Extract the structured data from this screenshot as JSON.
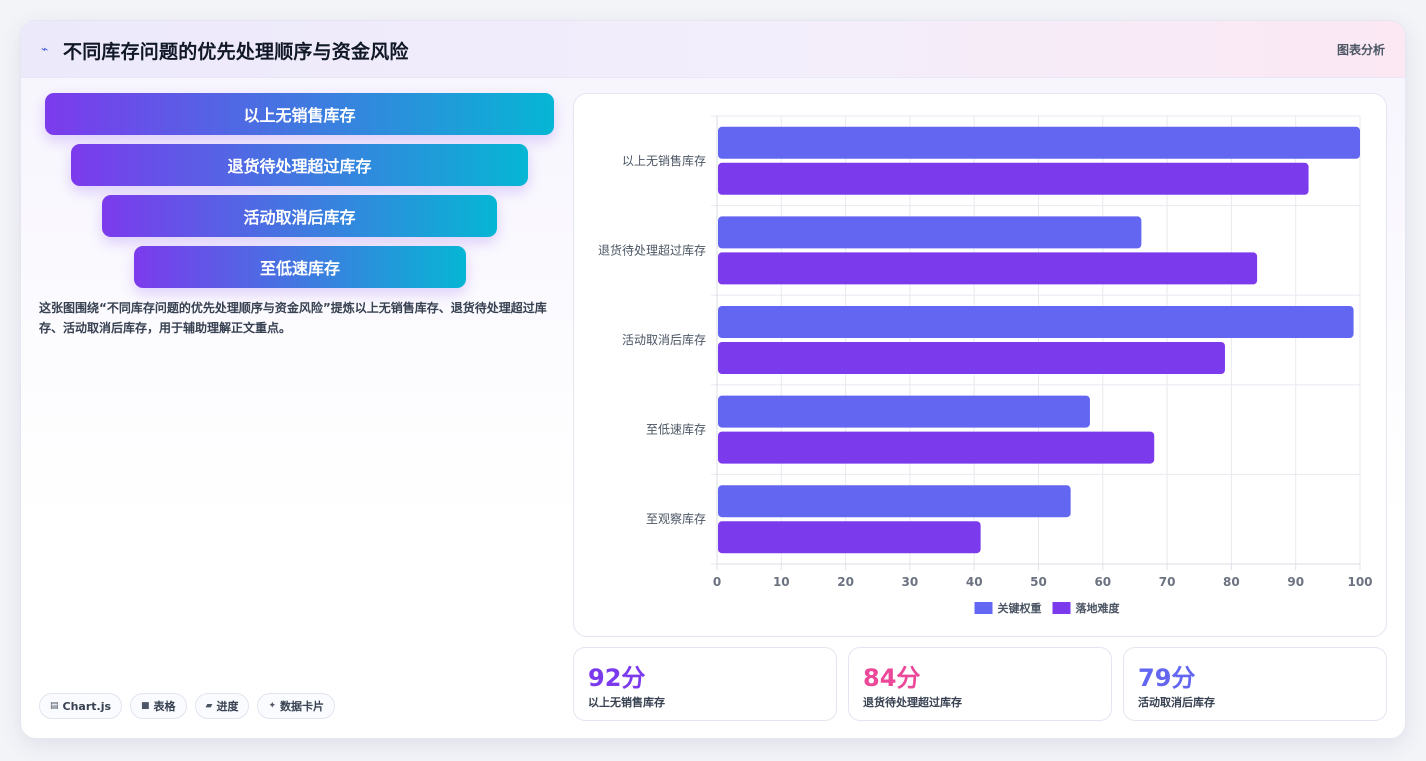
{
  "header": {
    "title": "不同库存问题的优先处理顺序与资金风险",
    "link": "图表分析"
  },
  "funnel": [
    {
      "label": "以上无销售库存"
    },
    {
      "label": "退货待处理超过库存"
    },
    {
      "label": "活动取消后库存"
    },
    {
      "label": "至低速库存"
    }
  ],
  "description": "这张图围绕“不同库存问题的优先处理顺序与资金风险”提炼以上无销售库存、退货待处理超过库存、活动取消后库存，用于辅助理解正文重点。",
  "tags": [
    {
      "icon": "chart-icon",
      "label": "Chart.js"
    },
    {
      "icon": "table-icon",
      "label": "表格"
    },
    {
      "icon": "progress-icon",
      "label": "进度"
    },
    {
      "icon": "sparkle-icon",
      "label": "数据卡片"
    }
  ],
  "chart_data": {
    "type": "bar",
    "orientation": "horizontal",
    "categories": [
      "以上无销售库存",
      "退货待处理超过库存",
      "活动取消后库存",
      "至低速库存",
      "至观察库存"
    ],
    "series": [
      {
        "name": "关键权重",
        "color": "#6366f1",
        "values": [
          100,
          66,
          99,
          58,
          55
        ]
      },
      {
        "name": "落地难度",
        "color": "#7c3aed",
        "values": [
          92,
          84,
          79,
          68,
          41
        ]
      }
    ],
    "xlim": [
      0,
      100
    ],
    "xticks": [
      "0",
      "10",
      "20",
      "30",
      "40",
      "50",
      "60",
      "70",
      "80",
      "90",
      "100"
    ],
    "grid": true,
    "legend": "bottom"
  },
  "stats": [
    {
      "value": "92分",
      "label": "以上无销售库存",
      "color": "#7c3aed"
    },
    {
      "value": "84分",
      "label": "退货待处理超过库存",
      "color": "#ec4899"
    },
    {
      "value": "79分",
      "label": "活动取消后库存",
      "color": "#6366f1"
    }
  ]
}
